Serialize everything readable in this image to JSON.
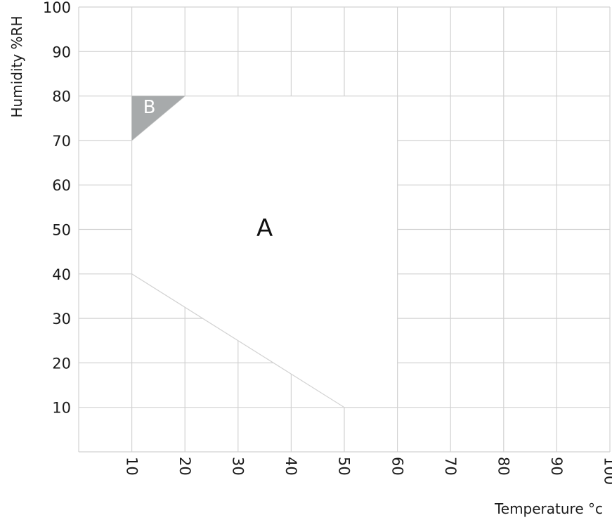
{
  "chart_data": {
    "type": "area",
    "xlabel": "Temperature °c",
    "ylabel": "Humidity %RH",
    "xlim": [
      0,
      100
    ],
    "ylim": [
      0,
      100
    ],
    "x_ticks": [
      "10",
      "20",
      "30",
      "40",
      "50",
      "60",
      "70",
      "80",
      "90",
      "100"
    ],
    "y_ticks": [
      "10",
      "20",
      "30",
      "40",
      "50",
      "60",
      "70",
      "80",
      "90",
      "100"
    ],
    "grid": true,
    "regions": [
      {
        "name": "A",
        "fill": "#ffffff",
        "points": [
          [
            10,
            70
          ],
          [
            20,
            80
          ],
          [
            60,
            80
          ],
          [
            60,
            10
          ],
          [
            50,
            10
          ],
          [
            10,
            40
          ]
        ]
      },
      {
        "name": "B",
        "fill": "#a7aaab",
        "points": [
          [
            10,
            70
          ],
          [
            10,
            80
          ],
          [
            20,
            80
          ]
        ]
      }
    ],
    "label_positions": {
      "A": [
        35,
        50
      ],
      "B": [
        13.3,
        77.3
      ]
    }
  }
}
